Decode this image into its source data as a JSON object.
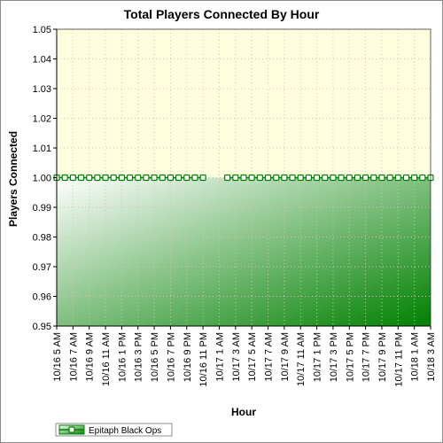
{
  "chart_data": {
    "type": "area",
    "title": "Total Players Connected By Hour",
    "xlabel": "Hour",
    "ylabel": "Players Connected",
    "ylim": [
      0.95,
      1.05
    ],
    "y_ticks": [
      "0.95",
      "0.96",
      "0.97",
      "0.98",
      "0.99",
      "1.00",
      "1.01",
      "1.02",
      "1.03",
      "1.04",
      "1.05"
    ],
    "grid": true,
    "legend_position": "bottom-left",
    "categories": [
      "10/16 5 AM",
      "10/16 6 AM",
      "10/16 7 AM",
      "10/16 8 AM",
      "10/16 9 AM",
      "10/16 10 AM",
      "10/16 11 AM",
      "10/16 12 PM",
      "10/16 1 PM",
      "10/16 2 PM",
      "10/16 3 PM",
      "10/16 4 PM",
      "10/16 5 PM",
      "10/16 6 PM",
      "10/16 7 PM",
      "10/16 8 PM",
      "10/16 9 PM",
      "10/16 10 PM",
      "10/16 11 PM",
      "10/17 12 AM",
      "10/17 1 AM",
      "10/17 2 AM",
      "10/17 3 AM",
      "10/17 4 AM",
      "10/17 5 AM",
      "10/17 6 AM",
      "10/17 7 AM",
      "10/17 8 AM",
      "10/17 9 AM",
      "10/17 10 AM",
      "10/17 11 AM",
      "10/17 12 PM",
      "10/17 1 PM",
      "10/17 2 PM",
      "10/17 3 PM",
      "10/17 4 PM",
      "10/17 5 PM",
      "10/17 6 PM",
      "10/17 7 PM",
      "10/17 8 PM",
      "10/17 9 PM",
      "10/17 10 PM",
      "10/17 11 PM",
      "10/18 12 AM",
      "10/18 1 AM",
      "10/18 2 AM",
      "10/18 3 AM"
    ],
    "x_tick_labels": [
      "10/16 5 AM",
      "10/16 7 AM",
      "10/16 9 AM",
      "10/16 11 AM",
      "10/16 1 PM",
      "10/16 3 PM",
      "10/16 5 PM",
      "10/16 7 PM",
      "10/16 9 PM",
      "10/16 11 PM",
      "10/17 1 AM",
      "10/17 3 AM",
      "10/17 5 AM",
      "10/17 7 AM",
      "10/17 9 AM",
      "10/17 11 AM",
      "10/17 1 PM",
      "10/17 3 PM",
      "10/17 5 PM",
      "10/17 7 PM",
      "10/17 9 PM",
      "10/17 11 PM",
      "10/18 1 AM",
      "10/18 3 AM"
    ],
    "series": [
      {
        "name": "Epitaph Black Ops",
        "color": "#008000",
        "values": [
          1,
          1,
          1,
          1,
          1,
          1,
          1,
          1,
          1,
          1,
          1,
          1,
          1,
          1,
          1,
          1,
          1,
          1,
          1,
          null,
          null,
          1,
          1,
          1,
          1,
          1,
          1,
          1,
          1,
          1,
          1,
          1,
          1,
          1,
          1,
          1,
          1,
          1,
          1,
          1,
          1,
          1,
          1,
          1,
          1,
          1,
          1
        ]
      }
    ],
    "colors": {
      "plot_background": "#ffffe0",
      "area_fill_light": "#ffffff",
      "area_fill_dark": "#008000",
      "line": "#008000",
      "marker_fill": "#ffffff",
      "grid": "#c8c8b4"
    }
  }
}
